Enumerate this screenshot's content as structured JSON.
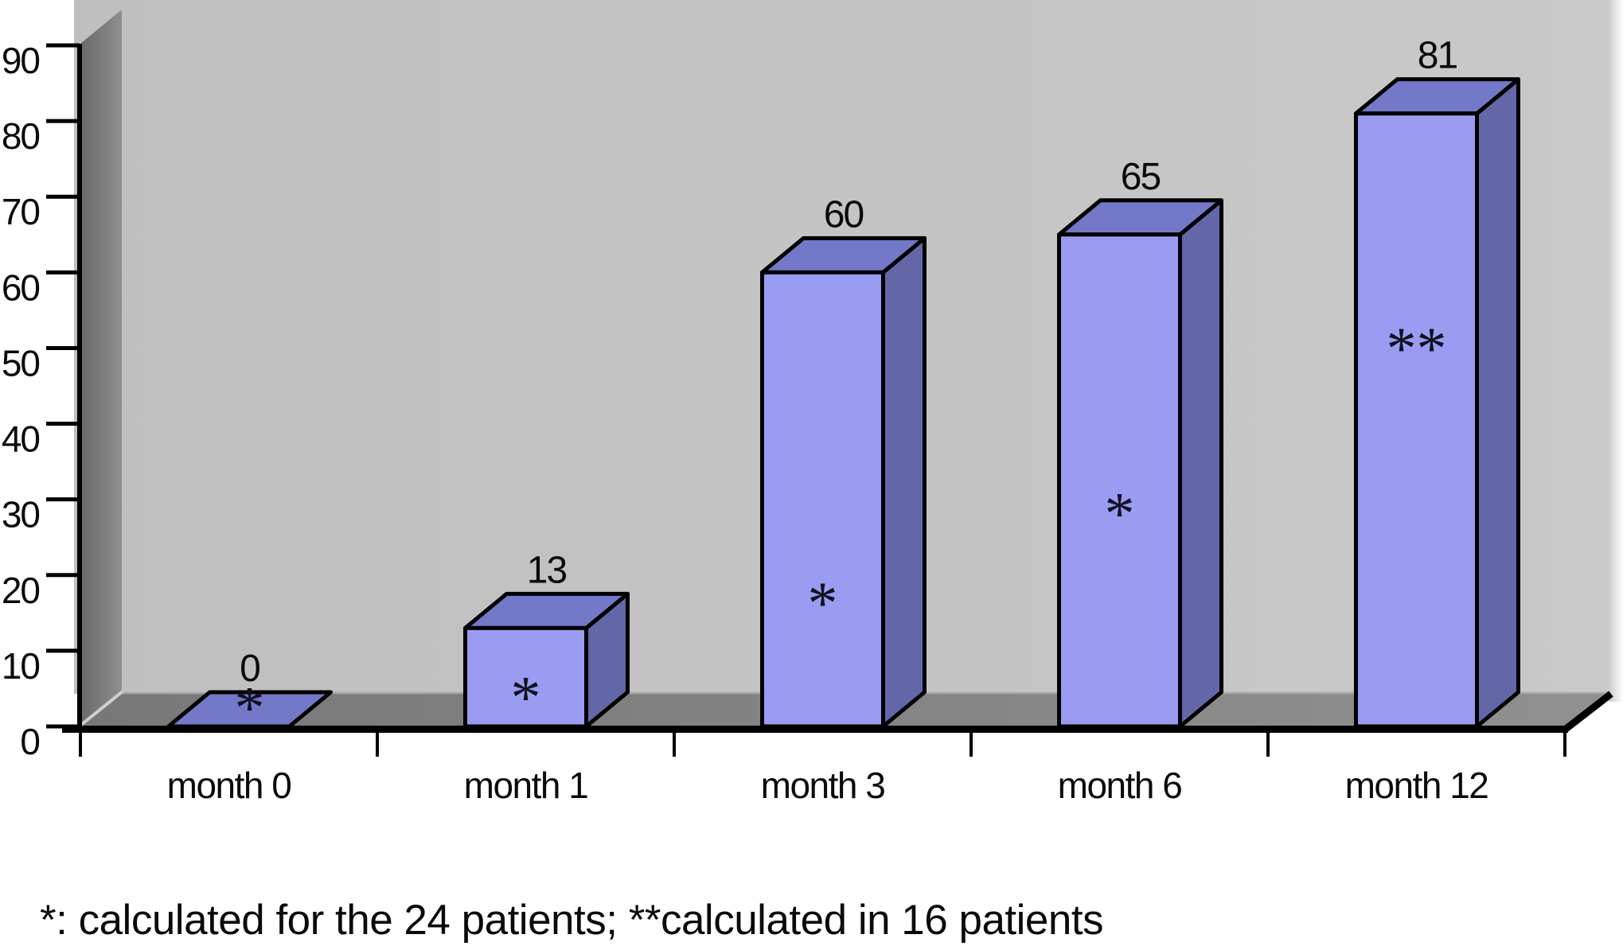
{
  "chart_data": {
    "type": "bar",
    "style": "3d-prism",
    "title": "",
    "xlabel": "",
    "ylabel": "",
    "categories": [
      "month 0",
      "month 1",
      "month 3",
      "month 6",
      "month 12"
    ],
    "values": [
      0,
      13,
      60,
      65,
      81
    ],
    "data_labels": [
      "0",
      "13",
      "60",
      "65",
      "81"
    ],
    "bar_annotations": [
      "*",
      "*",
      "*",
      "*",
      "**"
    ],
    "annotation_offset_frac": [
      null,
      0.62,
      0.71,
      0.55,
      0.37
    ],
    "y_ticks": [
      "0",
      "10",
      "20",
      "30",
      "40",
      "50",
      "60",
      "70",
      "80",
      "90"
    ],
    "ylim": [
      0,
      90
    ],
    "grid": false,
    "legend": null,
    "colors": {
      "bar_front": "#9a9cf1",
      "bar_top": "#7478c8",
      "bar_side": "#6367a8",
      "outline": "#000000",
      "back_wall_left": "#bfbfbf",
      "back_wall_right": "#c9c9c9",
      "side_wall_dark": "#696969",
      "side_wall_light": "#8f8f8f",
      "floor_dark": "#787878",
      "floor_light": "#909090",
      "text": "#0b0b0b"
    }
  },
  "footnote": {
    "text": "*: calculated for the 24 patients; **calculated in 16 patients"
  }
}
